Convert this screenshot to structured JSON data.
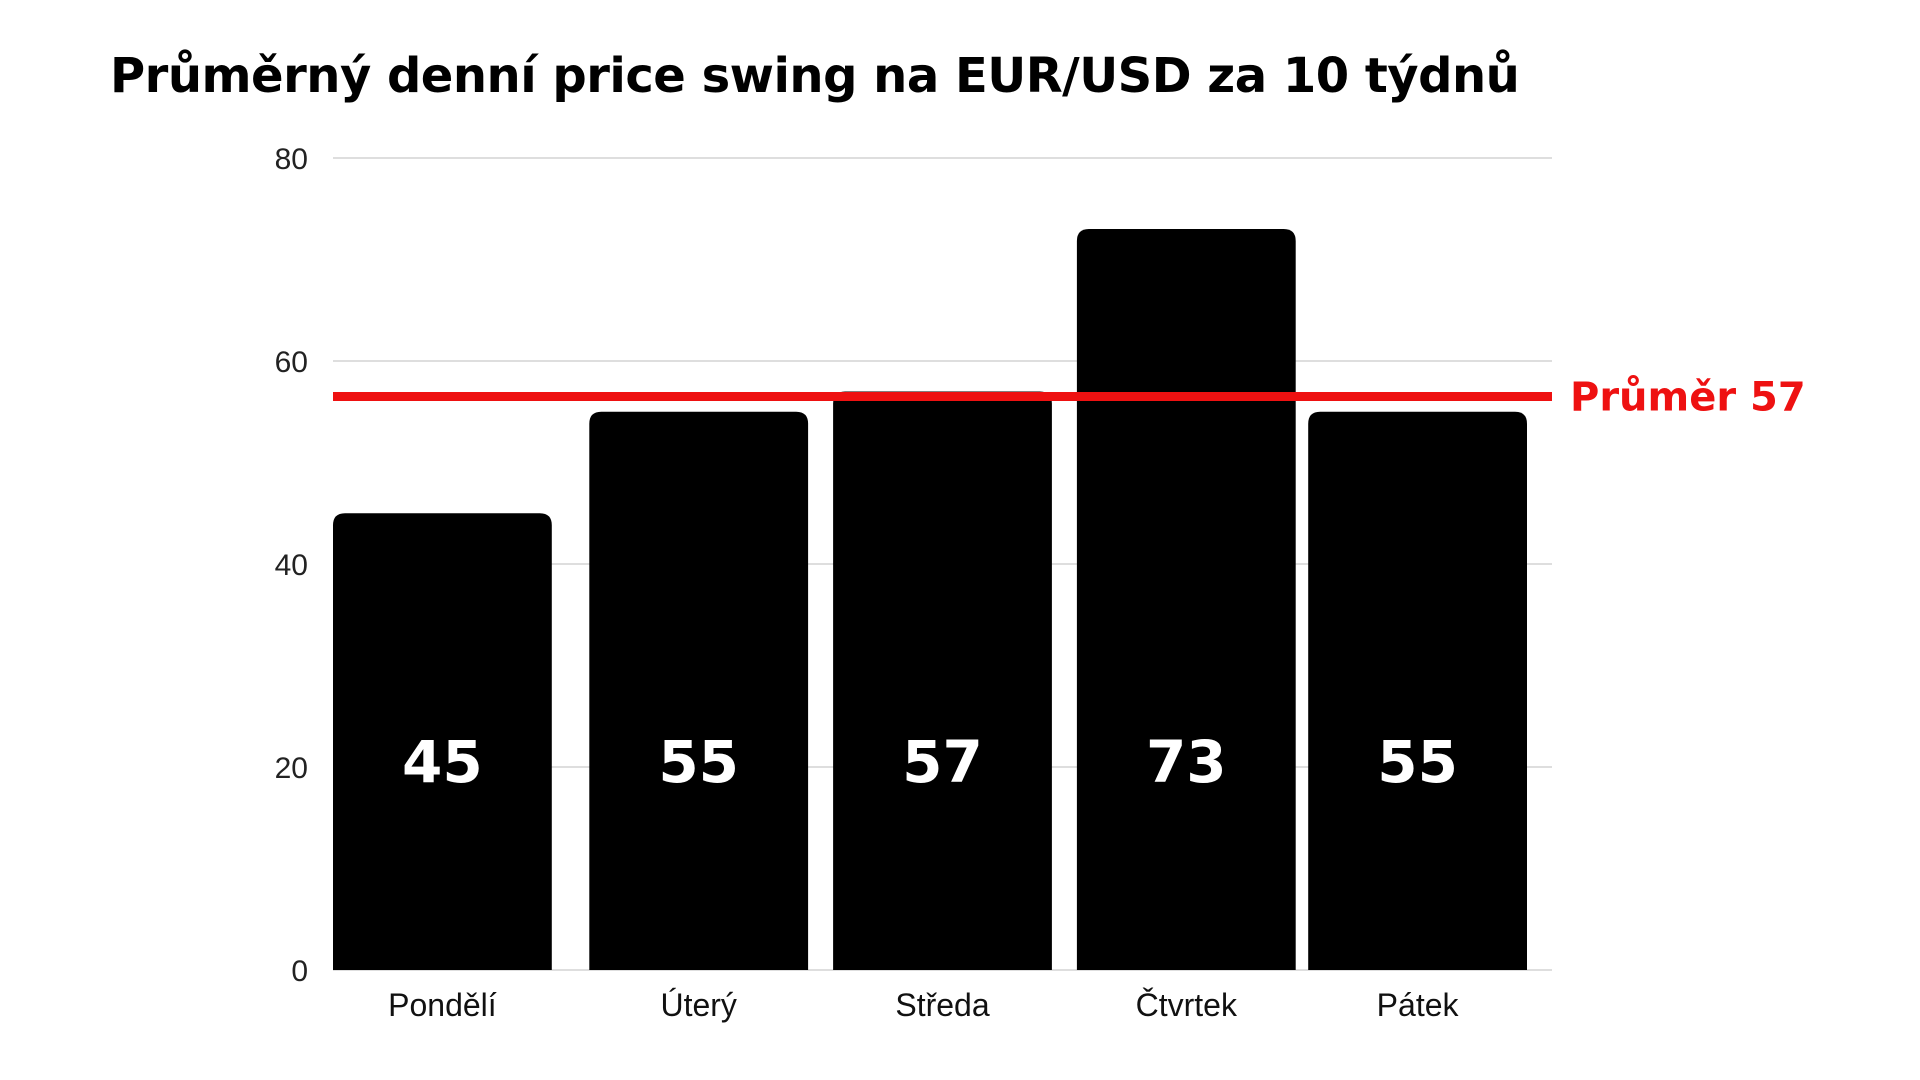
{
  "chart_data": {
    "type": "bar",
    "title": "Průměrný denní price swing na EUR/USD za 10 týdnů",
    "categories": [
      "Pondělí",
      "Úterý",
      "Středa",
      "Čtvrtek",
      "Pátek"
    ],
    "values": [
      45,
      55,
      57,
      73,
      55
    ],
    "data_labels": [
      "45",
      "55",
      "57",
      "73",
      "55"
    ],
    "ylim": [
      0,
      80
    ],
    "yticks": [
      "0",
      "20",
      "40",
      "60",
      "80"
    ],
    "xlabel": "",
    "ylabel": "",
    "grid": true,
    "bar_color": "#000000",
    "data_label_color": "#ffffff",
    "reference_line": {
      "value": 56.5,
      "label": "Průměr 57",
      "color": "#ee1111"
    }
  }
}
